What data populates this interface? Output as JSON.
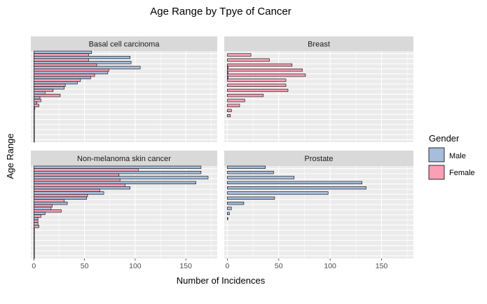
{
  "chart_data": {
    "type": "bar",
    "orientation": "horizontal",
    "title": "Age Range by Tpye of Cancer",
    "xlabel": "Number of Incidences",
    "ylabel": "Age Range",
    "xlim": [
      -3,
      181
    ],
    "x_ticks": [
      0,
      50,
      100,
      150
    ],
    "grid": true,
    "legend": {
      "title": "Gender",
      "position": "right",
      "entries": [
        {
          "name": "Male",
          "color": "#a6bddb"
        },
        {
          "name": "Female",
          "color": "#fa9fb5"
        }
      ]
    },
    "colors": {
      "male": "#a6bddb",
      "female": "#fa9fb5",
      "panel": "#ebebeb",
      "strip": "#d9d9d9"
    },
    "age_groups": 18,
    "panels": [
      {
        "title": "Basal cell carcinoma",
        "male": [
          57,
          95,
          96,
          105,
          73,
          56,
          43,
          30,
          11,
          6,
          3,
          1,
          0.5,
          0.5,
          0.5,
          0.5,
          0.5,
          0.5
        ],
        "female": [
          54,
          54,
          62,
          74,
          60,
          46,
          31,
          19,
          26,
          7,
          5,
          0.5,
          0.5,
          0.5,
          0.5,
          0.5,
          0.5,
          0.5
        ]
      },
      {
        "title": "Breast",
        "male": [
          0,
          0,
          0,
          0.8,
          0.8,
          0.8,
          0,
          0,
          0,
          0,
          0,
          0,
          0,
          0,
          0,
          0,
          0,
          0
        ],
        "female": [
          23,
          41,
          63,
          73,
          76,
          57,
          57,
          59,
          35,
          17,
          12,
          4,
          3,
          0,
          0,
          0,
          0,
          0
        ]
      },
      {
        "title": "Non-melanoma skin cancer",
        "male": [
          165,
          165,
          172,
          160,
          95,
          69,
          52,
          33,
          17,
          11,
          4,
          4,
          0.5,
          0.5,
          0.5,
          0.5,
          0.5,
          0.5
        ],
        "female": [
          103,
          84,
          85,
          90,
          65,
          53,
          30,
          18,
          27,
          7,
          4,
          5,
          0.5,
          0.5,
          0.5,
          0.5,
          0.5,
          0.5
        ]
      },
      {
        "title": "Prostate",
        "male": [
          37,
          45,
          65,
          131,
          135,
          98,
          46,
          16,
          4,
          2,
          0.5,
          0,
          0,
          0,
          0,
          0,
          0,
          0
        ],
        "female": [
          0,
          0,
          0,
          0,
          0,
          0,
          0,
          0,
          0,
          0,
          0,
          0,
          0,
          0,
          0,
          0,
          0,
          0
        ]
      }
    ]
  }
}
